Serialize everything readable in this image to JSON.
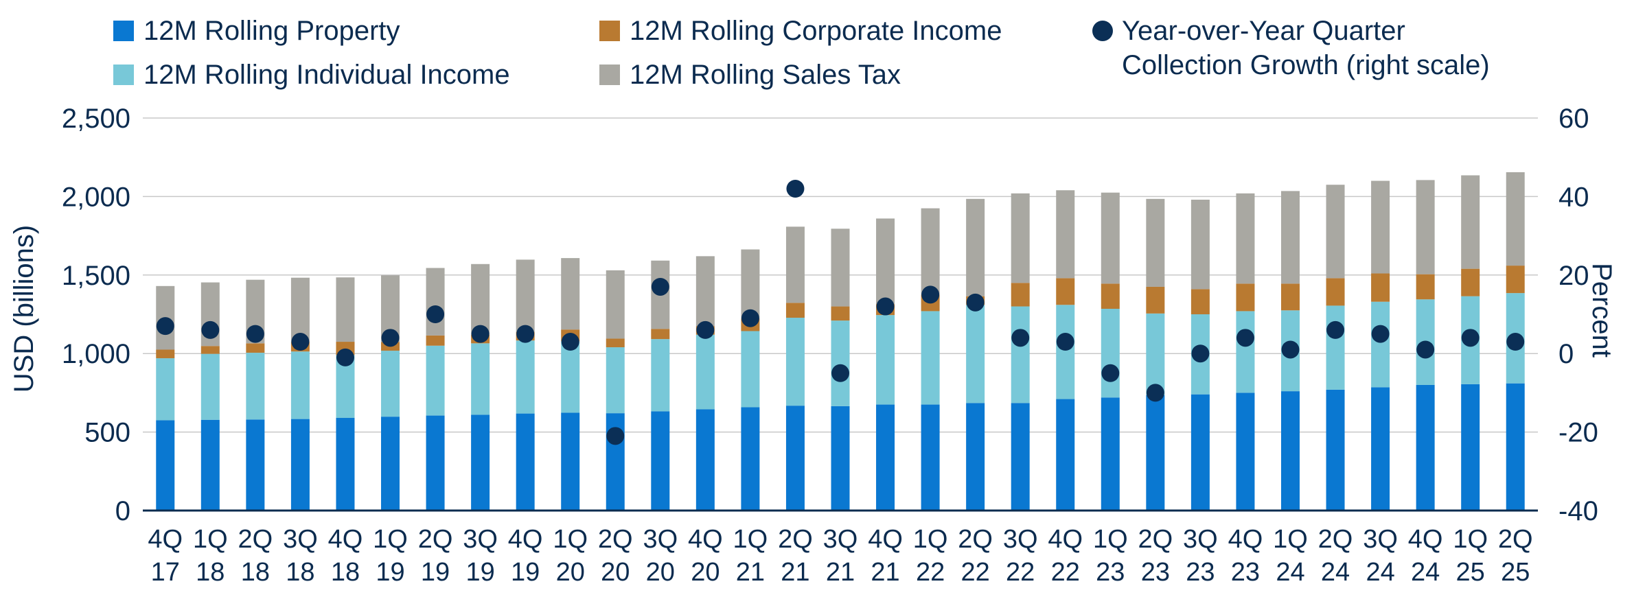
{
  "chart_data": {
    "type": "bar",
    "stacked": true,
    "title": "",
    "ylabel": "USD (billions)",
    "y2label": "Percent",
    "ylim": [
      0,
      2500
    ],
    "yticks": [
      "0",
      "500",
      "1,000",
      "1,500",
      "2,000",
      "2,500"
    ],
    "ytick_values": [
      0,
      500,
      1000,
      1500,
      2000,
      2500
    ],
    "y2lim": [
      -40,
      60
    ],
    "y2ticks": [
      "-40",
      "-20",
      "0",
      "20",
      "40",
      "60"
    ],
    "y2tick_values": [
      -40,
      -20,
      0,
      20,
      40,
      60
    ],
    "grid": true,
    "legend_position": "top",
    "categories": [
      {
        "q": "4Q",
        "y": "17"
      },
      {
        "q": "1Q",
        "y": "18"
      },
      {
        "q": "2Q",
        "y": "18"
      },
      {
        "q": "3Q",
        "y": "18"
      },
      {
        "q": "4Q",
        "y": "18"
      },
      {
        "q": "1Q",
        "y": "19"
      },
      {
        "q": "2Q",
        "y": "19"
      },
      {
        "q": "3Q",
        "y": "19"
      },
      {
        "q": "4Q",
        "y": "19"
      },
      {
        "q": "1Q",
        "y": "20"
      },
      {
        "q": "2Q",
        "y": "20"
      },
      {
        "q": "3Q",
        "y": "20"
      },
      {
        "q": "4Q",
        "y": "20"
      },
      {
        "q": "1Q",
        "y": "21"
      },
      {
        "q": "2Q",
        "y": "21"
      },
      {
        "q": "3Q",
        "y": "21"
      },
      {
        "q": "4Q",
        "y": "21"
      },
      {
        "q": "1Q",
        "y": "22"
      },
      {
        "q": "2Q",
        "y": "22"
      },
      {
        "q": "3Q",
        "y": "22"
      },
      {
        "q": "4Q",
        "y": "22"
      },
      {
        "q": "1Q",
        "y": "23"
      },
      {
        "q": "2Q",
        "y": "23"
      },
      {
        "q": "3Q",
        "y": "23"
      },
      {
        "q": "4Q",
        "y": "23"
      },
      {
        "q": "1Q",
        "y": "24"
      },
      {
        "q": "2Q",
        "y": "24"
      },
      {
        "q": "3Q",
        "y": "24"
      },
      {
        "q": "4Q",
        "y": "24"
      },
      {
        "q": "1Q",
        "y": "25"
      },
      {
        "q": "2Q",
        "y": "25"
      }
    ],
    "series": [
      {
        "name": "12M Rolling Property",
        "kind": "bar",
        "axis": "left",
        "color": "#0a78d1",
        "values": [
          575,
          578,
          580,
          583,
          590,
          598,
          605,
          610,
          618,
          623,
          620,
          632,
          645,
          658,
          668,
          665,
          675,
          675,
          685,
          685,
          710,
          720,
          735,
          740,
          750,
          760,
          770,
          785,
          800,
          805,
          810
        ]
      },
      {
        "name": "12M Rolling Individual Income",
        "kind": "bar",
        "axis": "left",
        "color": "#78c8d8",
        "values": [
          395,
          420,
          425,
          430,
          400,
          420,
          445,
          455,
          465,
          455,
          420,
          460,
          475,
          485,
          560,
          545,
          570,
          595,
          625,
          615,
          600,
          565,
          520,
          510,
          520,
          515,
          535,
          545,
          545,
          560,
          575
        ]
      },
      {
        "name": "12M Rolling Corporate Income",
        "kind": "bar",
        "axis": "left",
        "color": "#b97a31",
        "values": [
          55,
          50,
          60,
          60,
          85,
          55,
          65,
          55,
          55,
          75,
          55,
          65,
          55,
          80,
          95,
          90,
          70,
          105,
          55,
          150,
          170,
          160,
          170,
          160,
          175,
          170,
          175,
          180,
          160,
          175,
          175
        ]
      },
      {
        "name": "12M Rolling Sales Tax",
        "kind": "bar",
        "axis": "left",
        "color": "#a9a8a2",
        "values": [
          405,
          405,
          405,
          410,
          410,
          425,
          430,
          450,
          460,
          455,
          435,
          435,
          445,
          440,
          485,
          495,
          545,
          550,
          620,
          570,
          560,
          580,
          560,
          570,
          575,
          590,
          595,
          590,
          600,
          595,
          595
        ]
      },
      {
        "name": "Year-over-Year Quarter Collection Growth (right scale)",
        "legend_lines": [
          "Year-over-Year Quarter",
          "Collection Growth (right scale)"
        ],
        "kind": "scatter",
        "axis": "right",
        "color": "#0b2f56",
        "values": [
          7,
          6,
          5,
          3,
          -1,
          4,
          10,
          5,
          5,
          3,
          -21,
          17,
          6,
          9,
          42,
          -5,
          12,
          15,
          13,
          4,
          3,
          -5,
          -10,
          0,
          4,
          1,
          6,
          5,
          1,
          4,
          3
        ]
      }
    ]
  }
}
